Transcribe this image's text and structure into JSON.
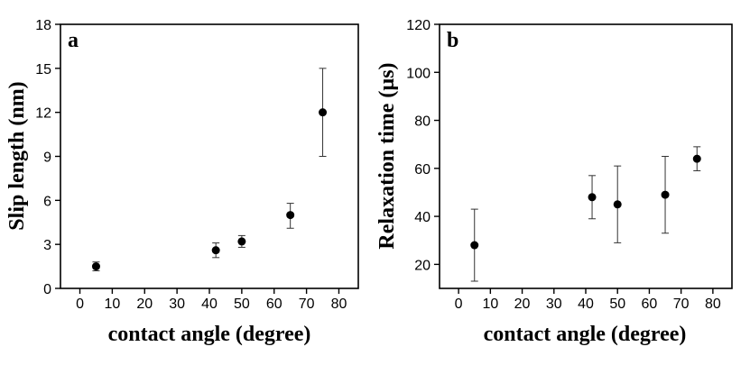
{
  "chart_data": [
    {
      "type": "scatter",
      "panel_label": "a",
      "xlabel": "contact angle (degree)",
      "ylabel": "Slip length (nm)",
      "xlim": [
        -6,
        86
      ],
      "ylim": [
        0,
        18
      ],
      "xticks": [
        0,
        10,
        20,
        30,
        40,
        50,
        60,
        70,
        80
      ],
      "yticks": [
        0,
        3,
        6,
        9,
        12,
        15,
        18
      ],
      "series": [
        {
          "points": [
            {
              "x": 5,
              "y": 1.5,
              "err_low": 1.2,
              "err_high": 1.8
            },
            {
              "x": 42,
              "y": 2.6,
              "err_low": 2.1,
              "err_high": 3.1
            },
            {
              "x": 50,
              "y": 3.2,
              "err_low": 2.8,
              "err_high": 3.6
            },
            {
              "x": 65,
              "y": 5.0,
              "err_low": 4.1,
              "err_high": 5.8
            },
            {
              "x": 75,
              "y": 12.0,
              "err_low": 9.0,
              "err_high": 15.0
            }
          ]
        }
      ]
    },
    {
      "type": "scatter",
      "panel_label": "b",
      "xlabel": "contact angle (degree)",
      "ylabel": "Relaxation time (µs)",
      "xlim": [
        -6,
        86
      ],
      "ylim": [
        10,
        120
      ],
      "xticks": [
        0,
        10,
        20,
        30,
        40,
        50,
        60,
        70,
        80
      ],
      "yticks": [
        20,
        40,
        60,
        80,
        100,
        120
      ],
      "series": [
        {
          "points": [
            {
              "x": 5,
              "y": 28,
              "err_low": 13,
              "err_high": 43
            },
            {
              "x": 42,
              "y": 48,
              "err_low": 39,
              "err_high": 57
            },
            {
              "x": 50,
              "y": 45,
              "err_low": 29,
              "err_high": 61
            },
            {
              "x": 65,
              "y": 49,
              "err_low": 33,
              "err_high": 65
            },
            {
              "x": 75,
              "y": 64,
              "err_low": 59,
              "err_high": 69
            }
          ]
        }
      ]
    }
  ]
}
